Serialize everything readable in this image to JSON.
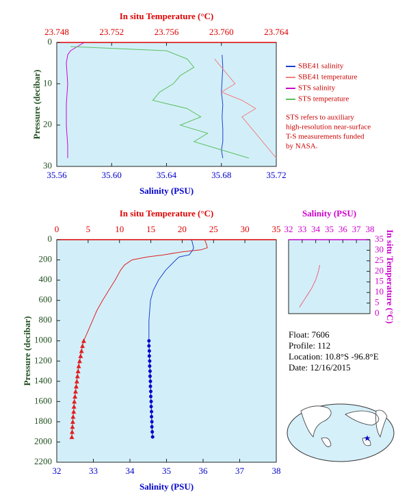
{
  "chart_data": [
    {
      "type": "profile",
      "x_label": "Salinity (PSU)",
      "x2_label": "In situ Temperature (°C)",
      "y_label": "Pressure (decibar)",
      "xlim": [
        35.56,
        35.72
      ],
      "xticks": [
        35.56,
        {
          "value": 35.6,
          "label": "35.60"
        },
        35.64,
        35.68,
        35.72
      ],
      "x2lim": [
        23.748,
        23.764
      ],
      "x2ticks": [
        23.748,
        23.752,
        23.756,
        {
          "value": 23.76,
          "label": "23.760"
        },
        23.764
      ],
      "ylim": [
        0,
        30
      ],
      "y_reversed": true,
      "yticks": [
        0,
        10,
        20,
        30
      ],
      "x_color": "#0000cc",
      "x2_color": "#dd0000",
      "y_color": "#1f4f1f",
      "legend": "outside-right",
      "series": [
        {
          "name": "SBE41 salinity",
          "color": "#1a3fd0",
          "x_axis": "x",
          "x": [
            35.6805,
            35.681,
            35.6805,
            35.68,
            35.681,
            35.6805,
            35.681,
            35.681,
            35.68,
            35.681
          ],
          "y": [
            3,
            6,
            9,
            12,
            15,
            18,
            21,
            24,
            26,
            28
          ]
        },
        {
          "name": "SBE41 temperature",
          "color": "#f08080",
          "x_axis": "x2",
          "x": [
            23.7595,
            23.76,
            23.7605,
            23.761,
            23.76,
            23.7615,
            23.7625,
            23.7615,
            23.762,
            23.7625,
            23.763,
            23.7635,
            23.764
          ],
          "y": [
            4,
            6,
            8,
            10,
            12,
            14,
            16,
            18,
            20,
            22,
            24,
            26,
            28
          ]
        },
        {
          "name": "STS salinity",
          "color": "#cc00cc",
          "x_axis": "x",
          "x": [
            35.58,
            35.575,
            35.57,
            35.568,
            35.567,
            35.568,
            35.567,
            35.567,
            35.568,
            35.568
          ],
          "y": [
            0,
            1,
            2,
            3,
            5,
            10,
            15,
            20,
            25,
            28
          ]
        },
        {
          "name": "STS temperature",
          "color": "#5cbf5c",
          "x_axis": "x2",
          "x": [
            23.749,
            23.756,
            23.7575,
            23.758,
            23.757,
            23.7565,
            23.7555,
            23.755,
            23.7575,
            23.7585,
            23.757,
            23.759,
            23.758,
            23.76,
            23.762
          ],
          "y": [
            1,
            2,
            4,
            6,
            8,
            10,
            12,
            14,
            16,
            18,
            20,
            22,
            24,
            26,
            28
          ]
        }
      ],
      "note": [
        "STS refers to auxiliary",
        "high-resolution near-surface",
        "T-S measurements funded",
        "by NASA."
      ]
    },
    {
      "type": "profile",
      "x_label": "Salinity (PSU)",
      "x2_label": "In situ Temperature (°C)",
      "y_label": "Pressure (decibar)",
      "xlim": [
        32,
        38
      ],
      "xticks": [
        32,
        33,
        34,
        35,
        36,
        37,
        38
      ],
      "x2lim": [
        0,
        35
      ],
      "x2ticks": [
        0,
        5,
        10,
        15,
        20,
        25,
        30,
        35
      ],
      "ylim": [
        0,
        2200
      ],
      "y_reversed": true,
      "yticks": [
        0,
        200,
        400,
        600,
        800,
        1000,
        1200,
        1400,
        1600,
        1800,
        2000,
        2200
      ],
      "x_color": "#0000cc",
      "x2_color": "#dd0000",
      "y_color": "#1f4f1f",
      "series": [
        {
          "color": "#e02020",
          "x_axis": "x2",
          "x": [
            23.6,
            23.7,
            23.9,
            24.0,
            23.0,
            20.0,
            17.0,
            14.5,
            12.0,
            10.8,
            10.2,
            9.3,
            8.3,
            7.3,
            6.4,
            5.7,
            5.0,
            4.3
          ],
          "y": [
            0,
            20,
            50,
            80,
            100,
            120,
            150,
            170,
            200,
            250,
            300,
            400,
            500,
            600,
            700,
            800,
            900,
            1000
          ]
        },
        {
          "color": "#e02020",
          "x_axis": "x2",
          "marker": "triangle",
          "x": [
            4.3,
            4.1,
            3.95,
            3.8,
            3.65,
            3.5,
            3.4,
            3.3,
            3.2,
            3.1,
            3.0,
            2.9,
            2.8,
            2.75,
            2.7,
            2.6,
            2.55,
            2.5,
            2.45,
            2.4
          ],
          "y": [
            1000,
            1050,
            1100,
            1150,
            1200,
            1250,
            1300,
            1350,
            1400,
            1450,
            1500,
            1550,
            1600,
            1650,
            1700,
            1750,
            1800,
            1850,
            1900,
            1950
          ]
        },
        {
          "color": "#1a3fd0",
          "x_axis": "x",
          "x": [
            35.68,
            35.7,
            35.72,
            35.74,
            35.72,
            35.62,
            35.35,
            35.28,
            35.12,
            34.98,
            34.78,
            34.64,
            34.56,
            34.52,
            34.52
          ],
          "y": [
            0,
            20,
            50,
            80,
            100,
            150,
            170,
            190,
            250,
            300,
            400,
            500,
            600,
            800,
            1000
          ]
        },
        {
          "color": "#0000cc",
          "x_axis": "x",
          "marker": "circle",
          "x": [
            34.52,
            34.52,
            34.53,
            34.53,
            34.54,
            34.54,
            34.55,
            34.55,
            34.56,
            34.56,
            34.57,
            34.57,
            34.58,
            34.58,
            34.59,
            34.59,
            34.6,
            34.6,
            34.61,
            34.62
          ],
          "y": [
            1000,
            1050,
            1100,
            1150,
            1200,
            1250,
            1300,
            1350,
            1400,
            1450,
            1500,
            1550,
            1600,
            1650,
            1700,
            1750,
            1800,
            1850,
            1900,
            1950
          ]
        }
      ]
    },
    {
      "type": "ts",
      "x2_label": "Salinity (PSU)",
      "y2_label": "In situ Temperature (°C)",
      "x2lim": [
        32,
        38
      ],
      "x2ticks": [
        32,
        33,
        34,
        35,
        36,
        37,
        38
      ],
      "y2lim": [
        0,
        35
      ],
      "y2ticks": [
        0,
        5,
        10,
        15,
        20,
        25,
        30,
        35
      ],
      "x2_color": "#cc00cc",
      "y2_color": "#cc00cc",
      "series": [
        {
          "color": "#f06080",
          "x_axis": "x2",
          "y_axis": "y2",
          "x": [
            34.3,
            34.2,
            34.0,
            33.7,
            33.4,
            33.1,
            32.9,
            32.8
          ],
          "y": [
            23,
            20,
            16,
            12,
            9,
            6,
            4,
            3
          ]
        }
      ]
    }
  ],
  "info": [
    "Float:  7606",
    "Profile:  112",
    "Location:  10.8°S  -96.8°E",
    "Date:  12/16/2015"
  ]
}
